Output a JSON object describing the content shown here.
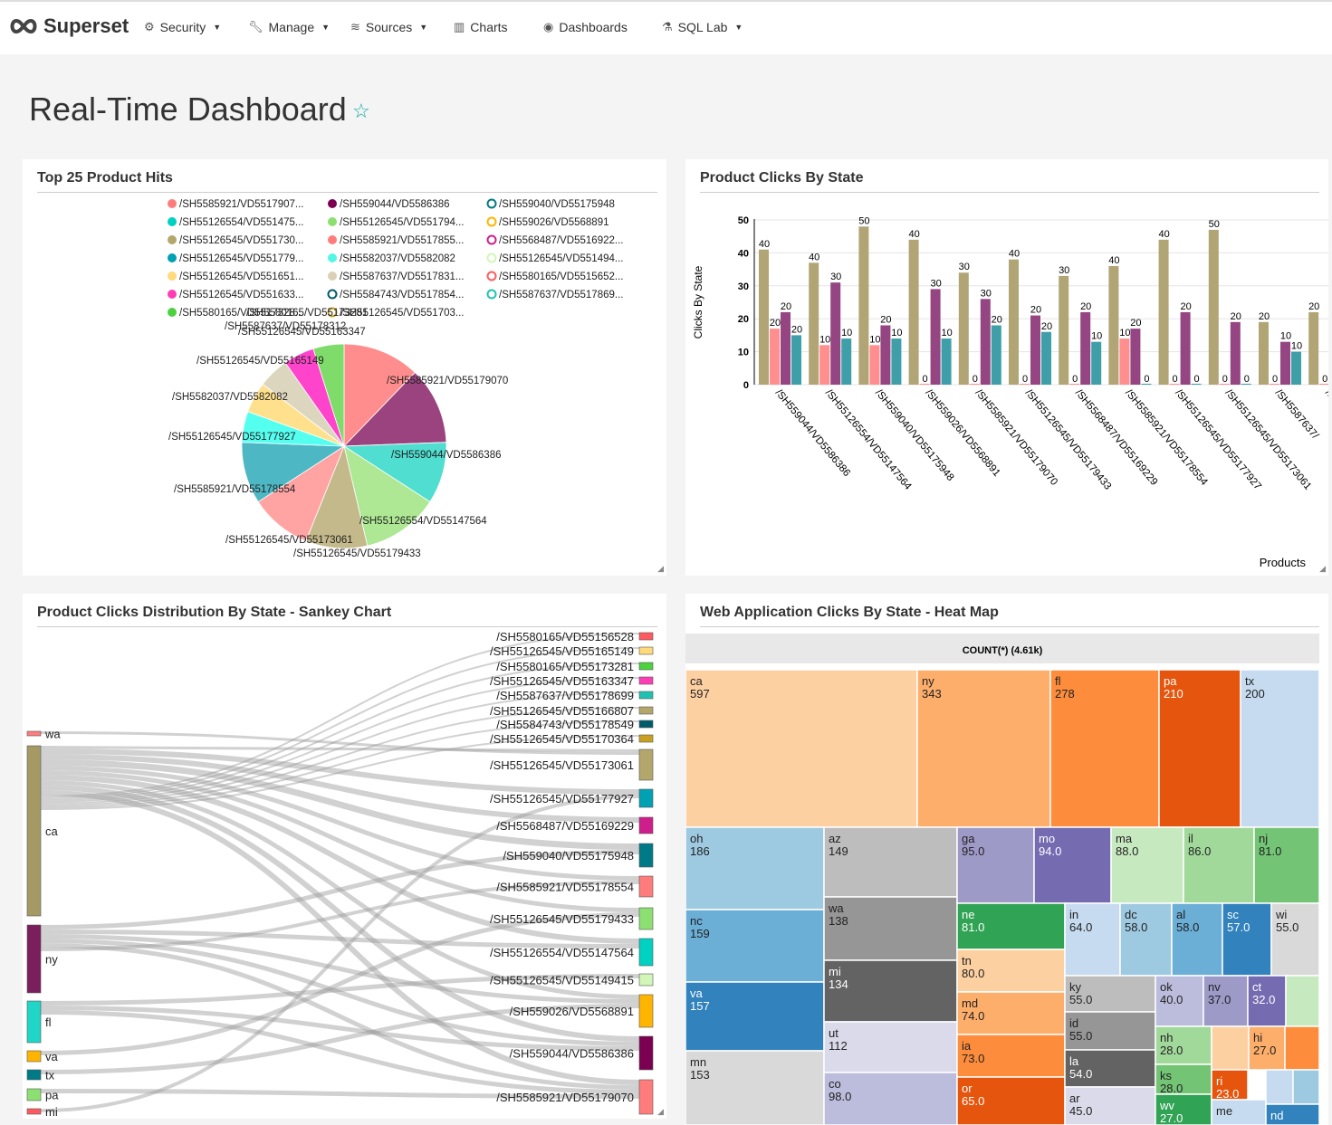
{
  "app": {
    "brand": "Superset"
  },
  "nav": [
    {
      "label": "Security",
      "icon": "gears-icon",
      "dropdown": true
    },
    {
      "label": "Manage",
      "icon": "wrench-icon",
      "dropdown": true
    },
    {
      "label": "Sources",
      "icon": "database-icon",
      "dropdown": true
    },
    {
      "label": "Charts",
      "icon": "bar-chart-icon",
      "dropdown": false
    },
    {
      "label": "Dashboards",
      "icon": "dashboard-icon",
      "dropdown": false
    },
    {
      "label": "SQL Lab",
      "icon": "flask-icon",
      "dropdown": true
    }
  ],
  "dashboard": {
    "title": "Real-Time Dashboard",
    "favorite": false
  },
  "panels": {
    "pie": {
      "title": "Top 25 Product Hits"
    },
    "bar": {
      "title": "Product Clicks By State"
    },
    "sankey": {
      "title": "Product Clicks Distribution By State - Sankey Chart"
    },
    "treemap": {
      "title": "Web Application Clicks By State - Heat Map"
    }
  },
  "chart_data": [
    {
      "type": "pie",
      "title": "Top 25 Product Hits",
      "legend": [
        {
          "label": "/SH5585921/VD5517907...",
          "color": "#ff7c7c",
          "filled": true
        },
        {
          "label": "/SH559044/VD5586386",
          "color": "#7b0051",
          "filled": true
        },
        {
          "label": "/SH559040/VD55175948",
          "color": "#007a87",
          "filled": false
        },
        {
          "label": "/SH55126554/VD551475...",
          "color": "#00d1c1",
          "filled": true
        },
        {
          "label": "/SH55126545/VD551794...",
          "color": "#8ce071",
          "filled": true
        },
        {
          "label": "/SH559026/VD5568891",
          "color": "#ffb400",
          "filled": false
        },
        {
          "label": "/SH55126545/VD551730...",
          "color": "#b4a76c",
          "filled": true
        },
        {
          "label": "/SH5585921/VD5517855...",
          "color": "#ff7c7c",
          "filled": true
        },
        {
          "label": "/SH5568487/VD5516922...",
          "color": "#ce1e8c",
          "filled": false
        },
        {
          "label": "/SH55126545/VD551779...",
          "color": "#00a1b3",
          "filled": true
        },
        {
          "label": "/SH5582037/VD5582082",
          "color": "#55f5e5",
          "filled": true
        },
        {
          "label": "/SH55126545/VD551494...",
          "color": "#d2f5b8",
          "filled": false
        },
        {
          "label": "/SH55126545/VD551651...",
          "color": "#ffd97a",
          "filled": true
        },
        {
          "label": "/SH5587637/VD5517831...",
          "color": "#d9d0b5",
          "filled": true
        },
        {
          "label": "/SH5580165/VD5515652...",
          "color": "#ff5a5f",
          "filled": false
        },
        {
          "label": "/SH55126545/VD551633...",
          "color": "#ff3eb5",
          "filled": true
        },
        {
          "label": "/SH5584743/VD5517854...",
          "color": "#005c6b",
          "filled": false
        },
        {
          "label": "/SH5587637/VD5517869...",
          "color": "#1fc2b1",
          "filled": false
        },
        {
          "label": "/SH5580165/VD5517328...",
          "color": "#4bd23e",
          "filled": true
        },
        {
          "label": "/SH55126545/VD551703...",
          "color": "#c9a020",
          "filled": false
        }
      ],
      "slices": [
        {
          "label": "/SH5585921/VD55179070",
          "value": 50,
          "color": "#ff8d8d"
        },
        {
          "label": "/SH559044/VD5586386",
          "value": 50,
          "color": "#9b437e"
        },
        {
          "label": "/SH55126554/VD55147564",
          "value": 40,
          "color": "#4fded0"
        },
        {
          "label": "/SH55126545/VD55179433",
          "value": 50,
          "color": "#aee894"
        },
        {
          "label": "/SH55126545/VD55173061",
          "value": 40,
          "color": "#c4b98a"
        },
        {
          "label": "/SH5585921/VD55178554",
          "value": 40,
          "color": "#ffa3a3"
        },
        {
          "label": "/SH55126545/VD55177927",
          "value": 40,
          "color": "#4db8c4"
        },
        {
          "label": "/SH5582037/VD5582082",
          "value": 20,
          "color": "#55fff0"
        },
        {
          "label": "/SH55126545/VD55165149",
          "value": 20,
          "color": "#ffe08c"
        },
        {
          "label": "/SH5587637/VD55178312",
          "value": 20,
          "color": "#ddd6be"
        },
        {
          "label": "/SH55126545/VD55163347",
          "value": 20,
          "color": "#ff44cc"
        },
        {
          "label": "/SH5580165/VD55173281",
          "value": 20,
          "color": "#7fdc6a"
        }
      ]
    },
    {
      "type": "bar",
      "title": "Product Clicks By State",
      "xlabel": "Products",
      "ylabel": "Clicks By State",
      "ylim": [
        0,
        50
      ],
      "yticks": [
        0,
        10,
        20,
        30,
        40,
        50
      ],
      "grid": true,
      "categories": [
        "/SH559044/VD5586386",
        "/SH55126554/VD55147564",
        "/SH559040/VD55175948",
        "/SH559026/VD5568891",
        "/SH5585921/VD55179070",
        "/SH55126545/VD55179433",
        "/SH5568487/VD55169229",
        "/SH5585921/VD55178554",
        "/SH55126545/VD55177927",
        "/SH55126545/VD55173061",
        "/SH5587637/",
        "/S"
      ],
      "series": [
        {
          "color": "#b1a576",
          "values": [
            40,
            40,
            50,
            40,
            30,
            40,
            30,
            40,
            40,
            50,
            20,
            20
          ]
        },
        {
          "color": "#ff8e8e",
          "values": [
            20,
            10,
            10,
            0,
            0,
            0,
            0,
            10,
            0,
            0,
            0,
            0
          ]
        },
        {
          "color": "#944582",
          "values": [
            20,
            30,
            20,
            30,
            30,
            20,
            20,
            20,
            20,
            20,
            10,
            null
          ]
        },
        {
          "color": "#3f9fa8",
          "values": [
            20,
            10,
            10,
            10,
            20,
            20,
            10,
            0,
            0,
            0,
            10,
            null
          ]
        }
      ],
      "bar_heights": [
        [
          41,
          37,
          48,
          44,
          34,
          38,
          33,
          36,
          44,
          47,
          19,
          22
        ],
        [
          17,
          12,
          12,
          0,
          0,
          0,
          0,
          14,
          0,
          0,
          0,
          0
        ],
        [
          22,
          31,
          18,
          29,
          26,
          21,
          22,
          17,
          22,
          19,
          13,
          null
        ],
        [
          15,
          14,
          14,
          14,
          18,
          16,
          13,
          0,
          0,
          0,
          10,
          null
        ]
      ]
    },
    {
      "type": "sankey",
      "title": "Product Clicks Distribution By State - Sankey Chart",
      "sources": [
        {
          "label": "wa",
          "color": "#ff7c7c",
          "weight": 2
        },
        {
          "label": "ca",
          "color": "#a59a66",
          "weight": 60
        },
        {
          "label": "ny",
          "color": "#7b1f5c",
          "weight": 24
        },
        {
          "label": "fl",
          "color": "#1fd6c7",
          "weight": 15
        },
        {
          "label": "va",
          "color": "#ffb400",
          "weight": 4
        },
        {
          "label": "tx",
          "color": "#007a87",
          "weight": 3
        },
        {
          "label": "pa",
          "color": "#8ce071",
          "weight": 4
        },
        {
          "label": "mi",
          "color": "#ff5a5f",
          "weight": 2
        }
      ],
      "targets": [
        {
          "label": "/SH5580165/VD55156528",
          "color": "#ff5a5f",
          "weight": 2
        },
        {
          "label": "/SH55126545/VD55165149",
          "color": "#ffd97a",
          "weight": 2
        },
        {
          "label": "/SH5580165/VD55173281",
          "color": "#4bd23e",
          "weight": 2
        },
        {
          "label": "/SH55126545/VD55163347",
          "color": "#ff3eb5",
          "weight": 2
        },
        {
          "label": "/SH5587637/VD55178699",
          "color": "#1fc2b1",
          "weight": 2
        },
        {
          "label": "/SH55126545/VD55166807",
          "color": "#b4a76c",
          "weight": 2
        },
        {
          "label": "/SH5584743/VD55178549",
          "color": "#005c6b",
          "weight": 2
        },
        {
          "label": "/SH55126545/VD55170364",
          "color": "#c9a020",
          "weight": 2
        },
        {
          "label": "/SH55126545/VD55173061",
          "color": "#b4a76c",
          "weight": 9
        },
        {
          "label": "/SH55126545/VD55177927",
          "color": "#00a1b3",
          "weight": 5
        },
        {
          "label": "/SH5568487/VD55169229",
          "color": "#ce1e8c",
          "weight": 5
        },
        {
          "label": "/SH559040/VD55175948",
          "color": "#007a87",
          "weight": 7
        },
        {
          "label": "/SH5585921/VD55178554",
          "color": "#ff7c7c",
          "weight": 6
        },
        {
          "label": "/SH55126545/VD55179433",
          "color": "#8ce071",
          "weight": 6
        },
        {
          "label": "/SH55126554/VD55147564",
          "color": "#00d1c1",
          "weight": 8
        },
        {
          "label": "/SH55126545/VD55149415",
          "color": "#d2f5b8",
          "weight": 3
        },
        {
          "label": "/SH559026/VD5568891",
          "color": "#ffb400",
          "weight": 9
        },
        {
          "label": "/SH559044/VD5586386",
          "color": "#7b0051",
          "weight": 10
        },
        {
          "label": "/SH5585921/VD55179070",
          "color": "#ff7c7c",
          "weight": 10
        }
      ]
    },
    {
      "type": "treemap",
      "title": "Web Application Clicks By State - Heat Map",
      "header": "COUNT(*) (4.61k)",
      "cells": [
        {
          "label": "ca",
          "value": "597",
          "color": "#fdd0a2"
        },
        {
          "label": "ny",
          "value": "343",
          "color": "#fdae6b"
        },
        {
          "label": "fl",
          "value": "278",
          "color": "#fd8d3c"
        },
        {
          "label": "pa",
          "value": "210",
          "color": "#e6550d"
        },
        {
          "label": "tx",
          "value": "200",
          "color": "#c6dbef"
        },
        {
          "label": "oh",
          "value": "186",
          "color": "#9ecae1"
        },
        {
          "label": "nc",
          "value": "159",
          "color": "#6baed6"
        },
        {
          "label": "va",
          "value": "157",
          "color": "#3182bd"
        },
        {
          "label": "mn",
          "value": "153",
          "color": "#d9d9d9"
        },
        {
          "label": "az",
          "value": "149",
          "color": "#bdbdbd"
        },
        {
          "label": "wa",
          "value": "138",
          "color": "#969696"
        },
        {
          "label": "mi",
          "value": "134",
          "color": "#636363"
        },
        {
          "label": "ut",
          "value": "112",
          "color": "#dadaeb"
        },
        {
          "label": "co",
          "value": "98.0",
          "color": "#bcbddc"
        },
        {
          "label": "ga",
          "value": "95.0",
          "color": "#9e9ac8"
        },
        {
          "label": "mo",
          "value": "94.0",
          "color": "#756bb1"
        },
        {
          "label": "ma",
          "value": "88.0",
          "color": "#c7e9c0"
        },
        {
          "label": "il",
          "value": "86.0",
          "color": "#a1d99b"
        },
        {
          "label": "nj",
          "value": "81.0",
          "color": "#74c476"
        },
        {
          "label": "ne",
          "value": "81.0",
          "color": "#31a354"
        },
        {
          "label": "tn",
          "value": "80.0",
          "color": "#fdd0a2"
        },
        {
          "label": "md",
          "value": "74.0",
          "color": "#fdae6b"
        },
        {
          "label": "ia",
          "value": "73.0",
          "color": "#fd8d3c"
        },
        {
          "label": "or",
          "value": "65.0",
          "color": "#e6550d"
        },
        {
          "label": "in",
          "value": "64.0",
          "color": "#c6dbef"
        },
        {
          "label": "dc",
          "value": "58.0",
          "color": "#9ecae1"
        },
        {
          "label": "al",
          "value": "58.0",
          "color": "#6baed6"
        },
        {
          "label": "sc",
          "value": "57.0",
          "color": "#3182bd"
        },
        {
          "label": "wi",
          "value": "55.0",
          "color": "#d9d9d9"
        },
        {
          "label": "ky",
          "value": "55.0",
          "color": "#bdbdbd"
        },
        {
          "label": "id",
          "value": "55.0",
          "color": "#969696"
        },
        {
          "label": "la",
          "value": "54.0",
          "color": "#636363"
        },
        {
          "label": "ar",
          "value": "45.0",
          "color": "#dadaeb"
        },
        {
          "label": "ok",
          "value": "40.0",
          "color": "#bcbddc"
        },
        {
          "label": "nv",
          "value": "37.0",
          "color": "#9e9ac8"
        },
        {
          "label": "ct",
          "value": "32.0",
          "color": "#756bb1"
        },
        {
          "label": "",
          "value": "",
          "color": "#c7e9c0"
        },
        {
          "label": "nh",
          "value": "28.0",
          "color": "#a1d99b"
        },
        {
          "label": "ks",
          "value": "28.0",
          "color": "#74c476"
        },
        {
          "label": "wv",
          "value": "27.0",
          "color": "#31a354"
        },
        {
          "label": "",
          "value": "",
          "color": "#fdd0a2"
        },
        {
          "label": "hi",
          "value": "27.0",
          "color": "#fdae6b"
        },
        {
          "label": "",
          "value": "",
          "color": "#fd8d3c"
        },
        {
          "label": "ri",
          "value": "23.0",
          "color": "#e6550d"
        },
        {
          "label": "me",
          "value": "",
          "color": "#c6dbef"
        },
        {
          "label": "",
          "value": "",
          "color": "#c6dbef"
        },
        {
          "label": "",
          "value": "",
          "color": "#9ecae1"
        },
        {
          "label": "nd",
          "value": "",
          "color": "#3182bd"
        }
      ]
    }
  ]
}
